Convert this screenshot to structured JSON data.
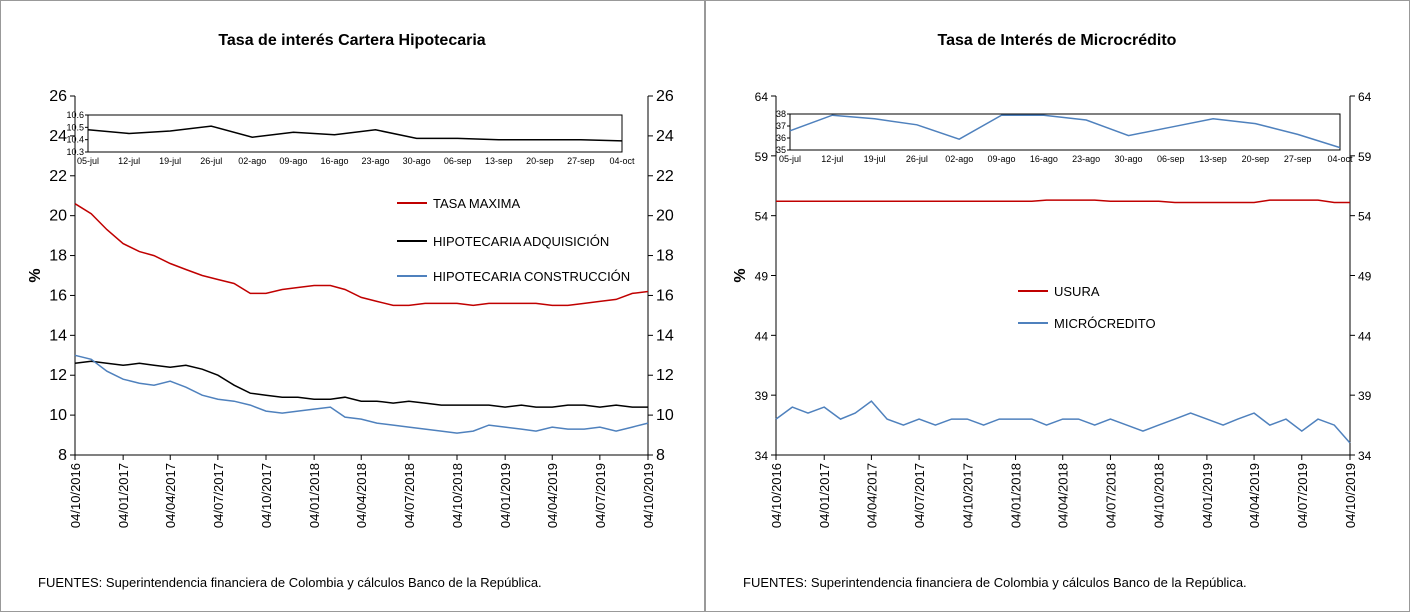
{
  "chart_data": [
    {
      "type": "line",
      "title": "Tasa de interés Cartera Hipotecaria",
      "y_label": "%",
      "source": "FUENTES: Superintendencia financiera de Colombia y cálculos Banco de la República.",
      "x": [
        "2016-10-04",
        "2016-11-04",
        "2016-12-04",
        "2017-01-04",
        "2017-02-04",
        "2017-03-04",
        "2017-04-04",
        "2017-05-04",
        "2017-06-04",
        "2017-07-04",
        "2017-08-04",
        "2017-09-04",
        "2017-10-04",
        "2017-11-04",
        "2017-12-04",
        "2018-01-04",
        "2018-02-04",
        "2018-03-04",
        "2018-04-04",
        "2018-05-04",
        "2018-06-04",
        "2018-07-04",
        "2018-08-04",
        "2018-09-04",
        "2018-10-04",
        "2018-11-04",
        "2018-12-04",
        "2019-01-04",
        "2019-02-04",
        "2019-03-04",
        "2019-04-04",
        "2019-05-04",
        "2019-06-04",
        "2019-07-04",
        "2019-08-04",
        "2019-09-04",
        "2019-10-04"
      ],
      "xlim": [
        "2016-10-04",
        "2019-10-04"
      ],
      "xticks": [
        {
          "value": "2016-10-04",
          "label": "04/10/2016"
        },
        {
          "value": "2017-01-04",
          "label": "04/01/2017"
        },
        {
          "value": "2017-04-04",
          "label": "04/04/2017"
        },
        {
          "value": "2017-07-04",
          "label": "04/07/2017"
        },
        {
          "value": "2017-10-04",
          "label": "04/10/2017"
        },
        {
          "value": "2018-01-04",
          "label": "04/01/2018"
        },
        {
          "value": "2018-04-04",
          "label": "04/04/2018"
        },
        {
          "value": "2018-07-04",
          "label": "04/07/2018"
        },
        {
          "value": "2018-10-04",
          "label": "04/10/2018"
        },
        {
          "value": "2019-01-04",
          "label": "04/01/2019"
        },
        {
          "value": "2019-04-04",
          "label": "04/04/2019"
        },
        {
          "value": "2019-07-04",
          "label": "04/07/2019"
        },
        {
          "value": "2019-10-04",
          "label": "04/10/2019"
        }
      ],
      "ylim": [
        8,
        26
      ],
      "yticks": [
        8,
        10,
        12,
        14,
        16,
        18,
        20,
        22,
        24,
        26
      ],
      "series": [
        {
          "name": "TASA MAXIMA",
          "color": "#c00000",
          "values": [
            20.6,
            20.1,
            19.3,
            18.6,
            18.2,
            18.0,
            17.6,
            17.3,
            17.0,
            16.8,
            16.6,
            16.1,
            16.1,
            16.3,
            16.4,
            16.5,
            16.5,
            16.3,
            15.9,
            15.7,
            15.5,
            15.5,
            15.6,
            15.6,
            15.6,
            15.5,
            15.6,
            15.6,
            15.6,
            15.6,
            15.5,
            15.5,
            15.6,
            15.7,
            15.8,
            16.1,
            16.2
          ]
        },
        {
          "name": "HIPOTECARIA ADQUISICIÓN",
          "color": "#000000",
          "values": [
            12.6,
            12.7,
            12.6,
            12.5,
            12.6,
            12.5,
            12.4,
            12.5,
            12.3,
            12.0,
            11.5,
            11.1,
            11.0,
            10.9,
            10.9,
            10.8,
            10.8,
            10.9,
            10.7,
            10.7,
            10.6,
            10.7,
            10.6,
            10.5,
            10.5,
            10.5,
            10.5,
            10.4,
            10.5,
            10.4,
            10.4,
            10.5,
            10.5,
            10.4,
            10.5,
            10.4,
            10.4
          ]
        },
        {
          "name": "HIPOTECARIA CONSTRUCCIÓN",
          "color": "#4f81bd",
          "values": [
            13.0,
            12.8,
            12.2,
            11.8,
            11.6,
            11.5,
            11.7,
            11.4,
            11.0,
            10.8,
            10.7,
            10.5,
            10.2,
            10.1,
            10.2,
            10.3,
            10.4,
            9.9,
            9.8,
            9.6,
            9.5,
            9.4,
            9.3,
            9.2,
            9.1,
            9.2,
            9.5,
            9.4,
            9.3,
            9.2,
            9.4,
            9.3,
            9.3,
            9.4,
            9.2,
            9.4,
            9.6
          ]
        }
      ],
      "inset": {
        "categories": [
          "05-jul",
          "12-jul",
          "19-jul",
          "26-jul",
          "02-ago",
          "09-ago",
          "16-ago",
          "23-ago",
          "30-ago",
          "06-sep",
          "13-sep",
          "20-sep",
          "27-sep",
          "04-oct"
        ],
        "values": [
          10.48,
          10.45,
          10.47,
          10.51,
          10.42,
          10.46,
          10.44,
          10.48,
          10.41,
          10.41,
          10.4,
          10.4,
          10.4,
          10.39
        ],
        "color": "#000000",
        "ylim": [
          10.3,
          10.6
        ],
        "yticks": [
          10.3,
          10.4,
          10.5,
          10.6
        ]
      }
    },
    {
      "type": "line",
      "title": "Tasa de Interés de Microcrédito",
      "y_label": "%",
      "source": "FUENTES: Superintendencia financiera de Colombia y cálculos Banco de la República.",
      "x": [
        "2016-10-04",
        "2016-11-04",
        "2016-12-04",
        "2017-01-04",
        "2017-02-04",
        "2017-03-04",
        "2017-04-04",
        "2017-05-04",
        "2017-06-04",
        "2017-07-04",
        "2017-08-04",
        "2017-09-04",
        "2017-10-04",
        "2017-11-04",
        "2017-12-04",
        "2018-01-04",
        "2018-02-04",
        "2018-03-04",
        "2018-04-04",
        "2018-05-04",
        "2018-06-04",
        "2018-07-04",
        "2018-08-04",
        "2018-09-04",
        "2018-10-04",
        "2018-11-04",
        "2018-12-04",
        "2019-01-04",
        "2019-02-04",
        "2019-03-04",
        "2019-04-04",
        "2019-05-04",
        "2019-06-04",
        "2019-07-04",
        "2019-08-04",
        "2019-09-04",
        "2019-10-04"
      ],
      "xlim": [
        "2016-10-04",
        "2019-10-04"
      ],
      "xticks": [
        {
          "value": "2016-10-04",
          "label": "04/10/2016"
        },
        {
          "value": "2017-01-04",
          "label": "04/01/2017"
        },
        {
          "value": "2017-04-04",
          "label": "04/04/2017"
        },
        {
          "value": "2017-07-04",
          "label": "04/07/2017"
        },
        {
          "value": "2017-10-04",
          "label": "04/10/2017"
        },
        {
          "value": "2018-01-04",
          "label": "04/01/2018"
        },
        {
          "value": "2018-04-04",
          "label": "04/04/2018"
        },
        {
          "value": "2018-07-04",
          "label": "04/07/2018"
        },
        {
          "value": "2018-10-04",
          "label": "04/10/2018"
        },
        {
          "value": "2019-01-04",
          "label": "04/01/2019"
        },
        {
          "value": "2019-04-04",
          "label": "04/04/2019"
        },
        {
          "value": "2019-07-04",
          "label": "04/07/2019"
        },
        {
          "value": "2019-10-04",
          "label": "04/10/2019"
        }
      ],
      "ylim": [
        34,
        64
      ],
      "yticks": [
        34,
        39,
        44,
        49,
        54,
        59,
        64
      ],
      "series": [
        {
          "name": "USURA",
          "color": "#c00000",
          "values": [
            55.2,
            55.2,
            55.2,
            55.2,
            55.2,
            55.2,
            55.2,
            55.2,
            55.2,
            55.2,
            55.2,
            55.2,
            55.2,
            55.2,
            55.2,
            55.2,
            55.2,
            55.3,
            55.3,
            55.3,
            55.3,
            55.2,
            55.2,
            55.2,
            55.2,
            55.1,
            55.1,
            55.1,
            55.1,
            55.1,
            55.1,
            55.3,
            55.3,
            55.3,
            55.3,
            55.1,
            55.1
          ]
        },
        {
          "name": "MICRÓCREDITO",
          "color": "#4f81bd",
          "values": [
            37,
            38,
            37.5,
            38,
            37,
            37.5,
            38.5,
            37,
            36.5,
            37,
            36.5,
            37,
            37,
            36.5,
            37,
            37,
            37,
            36.5,
            37,
            37,
            36.5,
            37,
            36.5,
            36,
            36.5,
            37,
            37.5,
            37,
            36.5,
            37,
            37.5,
            36.5,
            37,
            36,
            37,
            36.5,
            35
          ]
        }
      ],
      "inset": {
        "categories": [
          "05-jul",
          "12-jul",
          "19-jul",
          "26-jul",
          "02-ago",
          "09-ago",
          "16-ago",
          "23-ago",
          "30-ago",
          "06-sep",
          "13-sep",
          "20-sep",
          "27-sep",
          "04-oct"
        ],
        "values": [
          36.6,
          37.9,
          37.6,
          37.1,
          35.9,
          37.9,
          37.9,
          37.5,
          36.2,
          36.9,
          37.6,
          37.2,
          36.3,
          35.2
        ],
        "color": "#4f81bd",
        "ylim": [
          35,
          38
        ],
        "yticks": [
          35,
          36,
          37,
          38
        ]
      }
    }
  ]
}
